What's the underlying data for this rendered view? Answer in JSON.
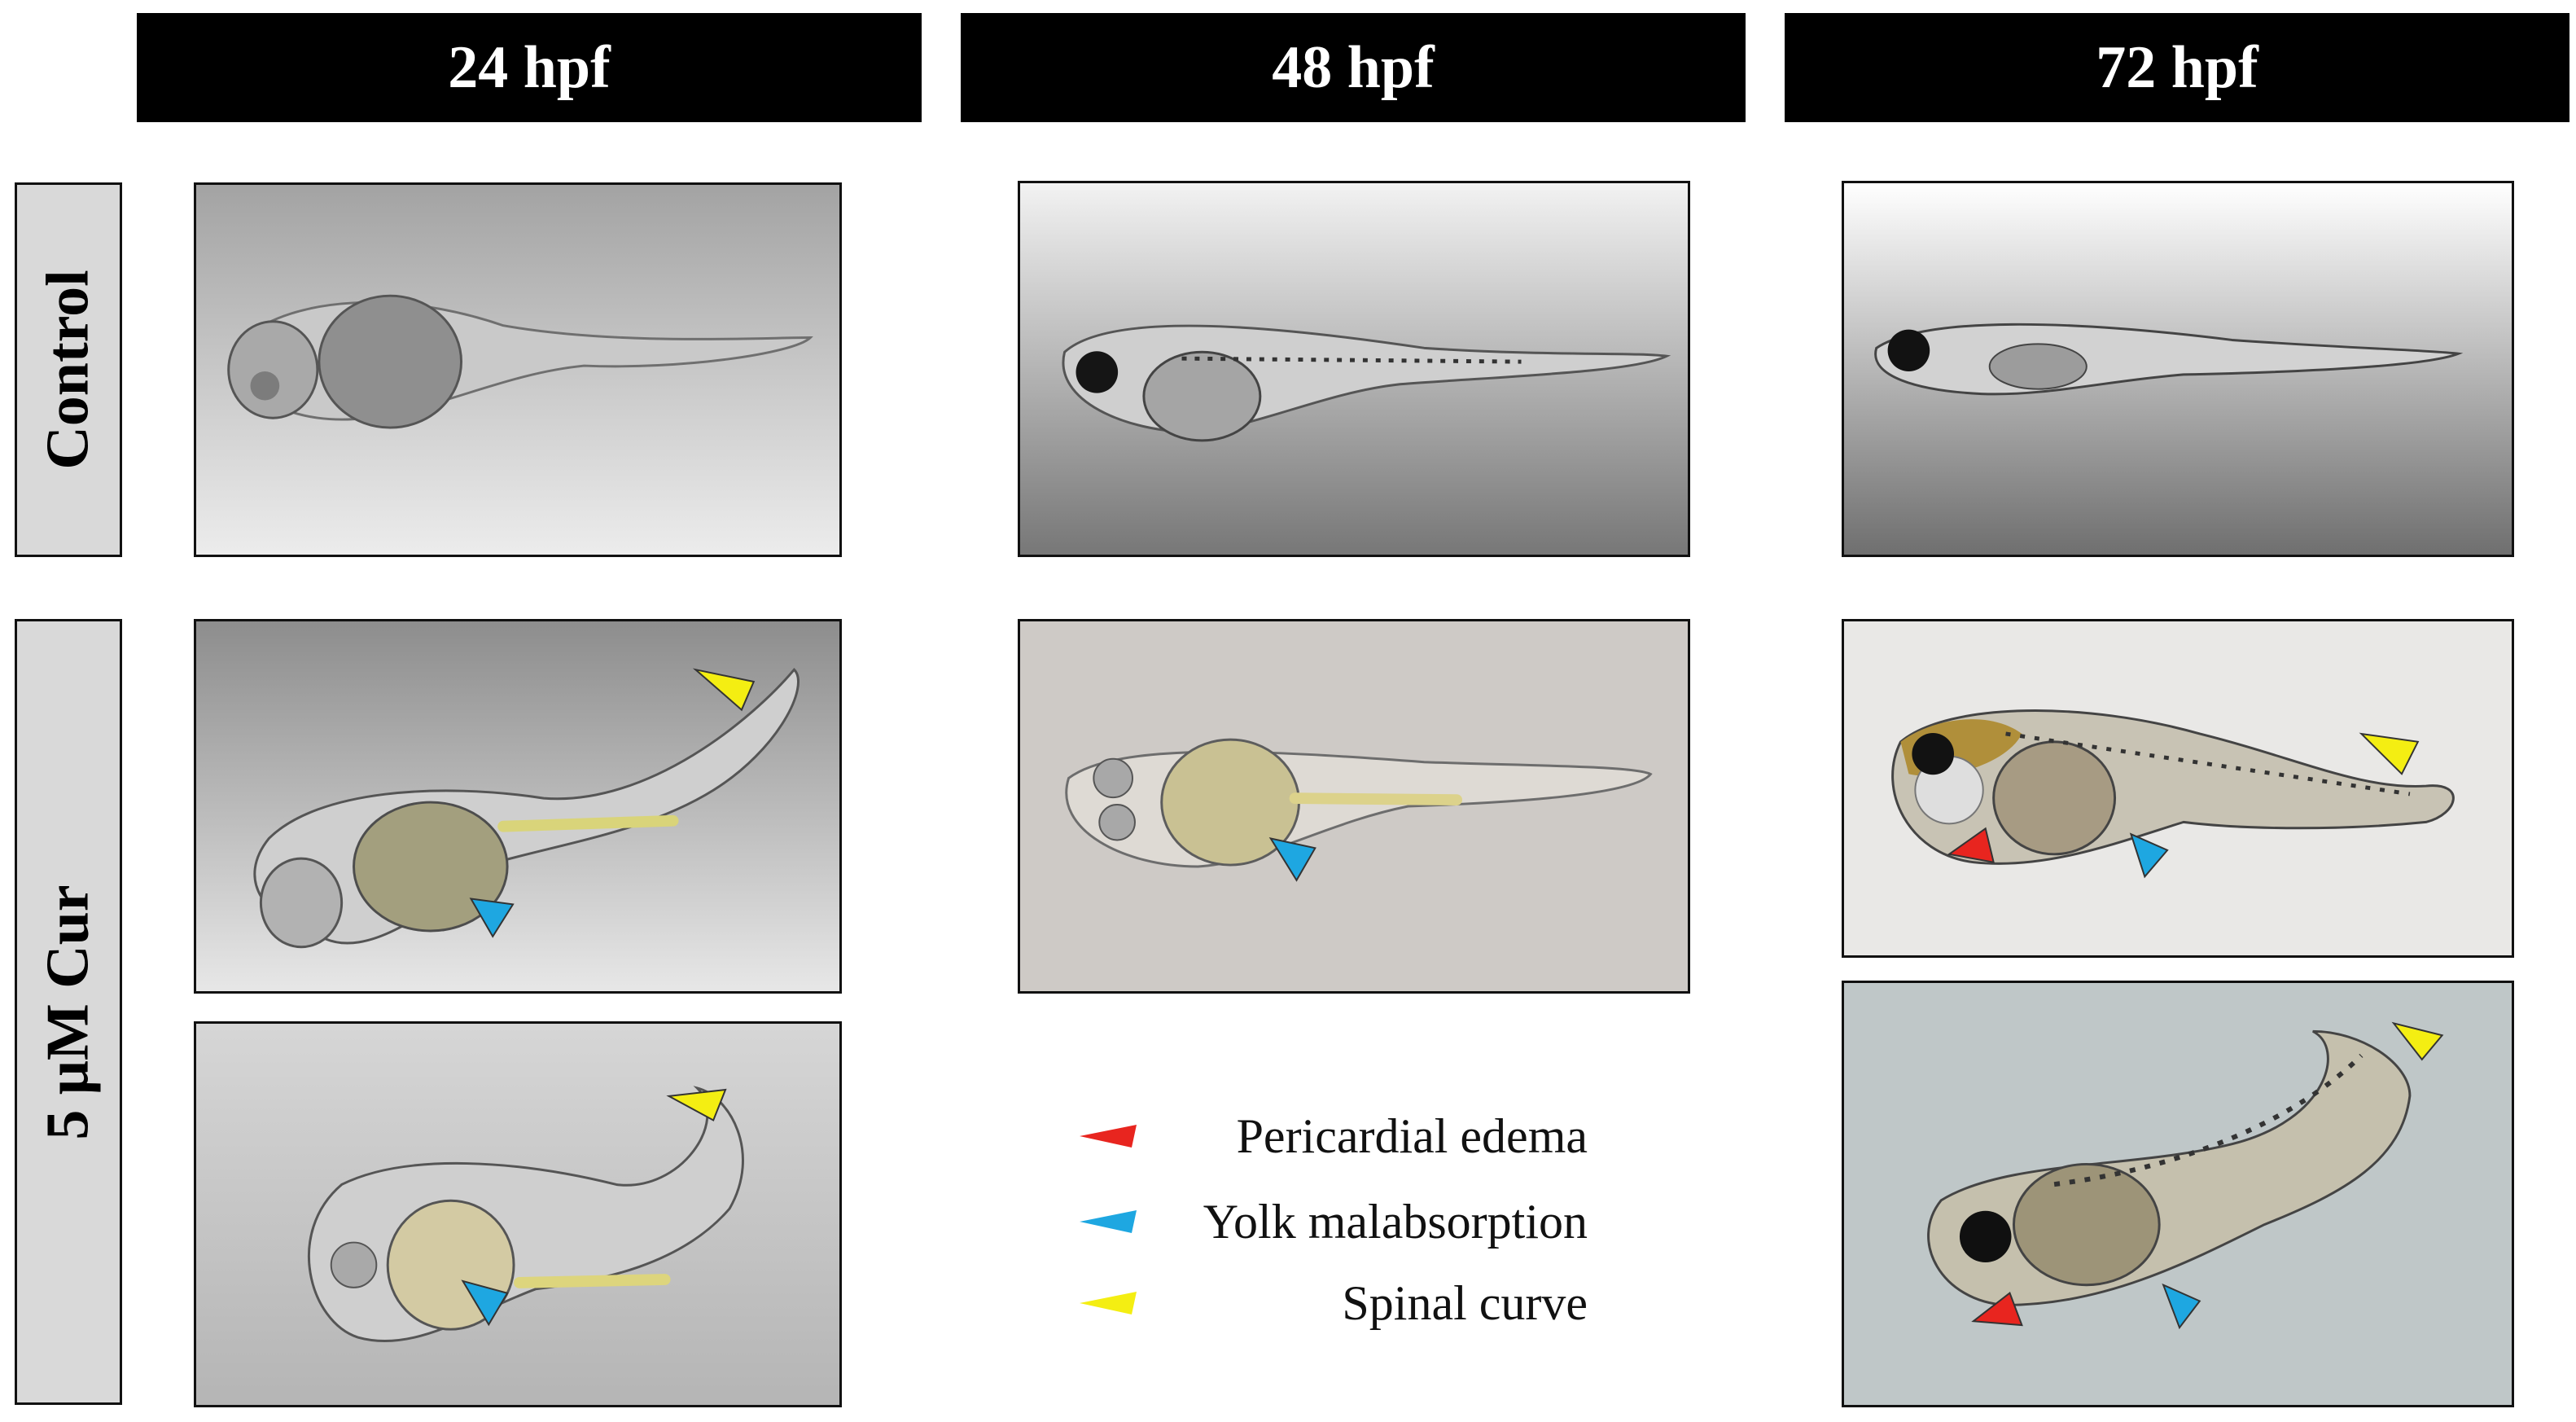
{
  "columns": [
    {
      "label": "24 hpf"
    },
    {
      "label": "48 hpf"
    },
    {
      "label": "72 hpf"
    }
  ],
  "rows": [
    {
      "label": "Control"
    },
    {
      "label": "5 μM Cur"
    }
  ],
  "legend": [
    {
      "label": "Pericardial edema",
      "color": "#e8251f"
    },
    {
      "label": "Yolk malabsorption",
      "color": "#1ea7e1"
    },
    {
      "label": "Spinal curve",
      "color": "#f4ee12"
    }
  ],
  "panels": [
    {
      "stage": "24 hpf",
      "group": "Control",
      "markers": []
    },
    {
      "stage": "48 hpf",
      "group": "Control",
      "markers": []
    },
    {
      "stage": "72 hpf",
      "group": "Control",
      "markers": []
    },
    {
      "stage": "24 hpf",
      "group": "5 μM Cur",
      "markers": [
        "Spinal curve",
        "Yolk malabsorption"
      ]
    },
    {
      "stage": "24 hpf",
      "group": "5 μM Cur",
      "markers": [
        "Spinal curve",
        "Yolk malabsorption"
      ]
    },
    {
      "stage": "48 hpf",
      "group": "5 μM Cur",
      "markers": [
        "Yolk malabsorption"
      ]
    },
    {
      "stage": "72 hpf",
      "group": "5 μM Cur",
      "markers": [
        "Pericardial edema",
        "Yolk malabsorption",
        "Spinal curve"
      ]
    },
    {
      "stage": "72 hpf",
      "group": "5 μM Cur",
      "markers": [
        "Pericardial edema",
        "Yolk malabsorption",
        "Spinal curve"
      ]
    }
  ]
}
